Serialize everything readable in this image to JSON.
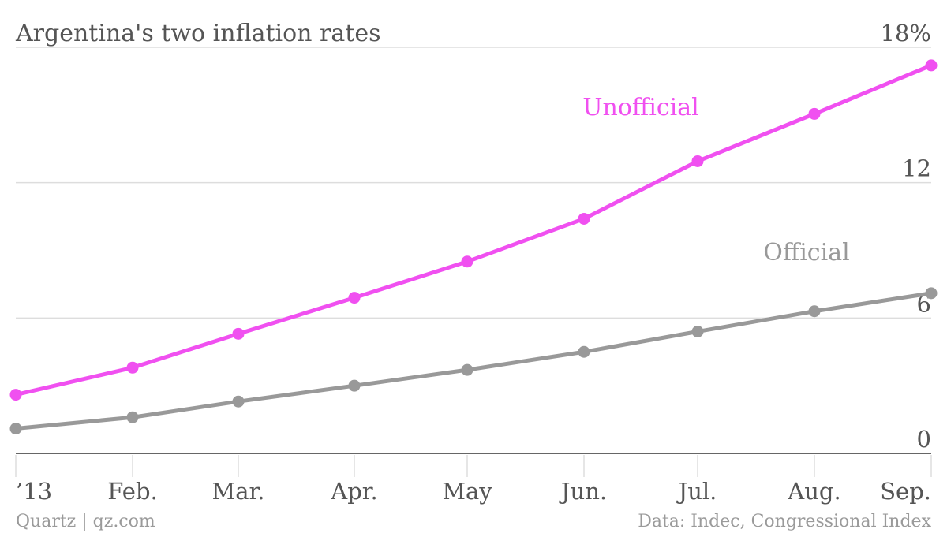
{
  "chart_data": {
    "type": "line",
    "title": "Argentina's two inflation rates",
    "categories": [
      "’13",
      "Feb.",
      "Mar.",
      "Apr.",
      "May",
      "Jun.",
      "Jul.",
      "Aug.",
      "Sep."
    ],
    "x": [
      0,
      1,
      2,
      3,
      4,
      5,
      6,
      7,
      8
    ],
    "y_ticks": [
      {
        "value": 0,
        "label": "0"
      },
      {
        "value": 6,
        "label": "6"
      },
      {
        "value": 12,
        "label": "12"
      },
      {
        "value": 18,
        "label": "18%"
      }
    ],
    "ylim": [
      0,
      18
    ],
    "grid": true,
    "series": [
      {
        "name": "Unofficial",
        "color": "#f050f0",
        "values": [
          2.6,
          3.8,
          5.3,
          6.9,
          8.5,
          10.4,
          12.95,
          15.05,
          17.2
        ]
      },
      {
        "name": "Official",
        "color": "#999999",
        "values": [
          1.1,
          1.6,
          2.3,
          3.0,
          3.7,
          4.5,
          5.4,
          6.3,
          7.1
        ]
      }
    ],
    "footer_left": "Quartz | qz.com",
    "footer_right": "Data: Indec, Congressional Index"
  }
}
